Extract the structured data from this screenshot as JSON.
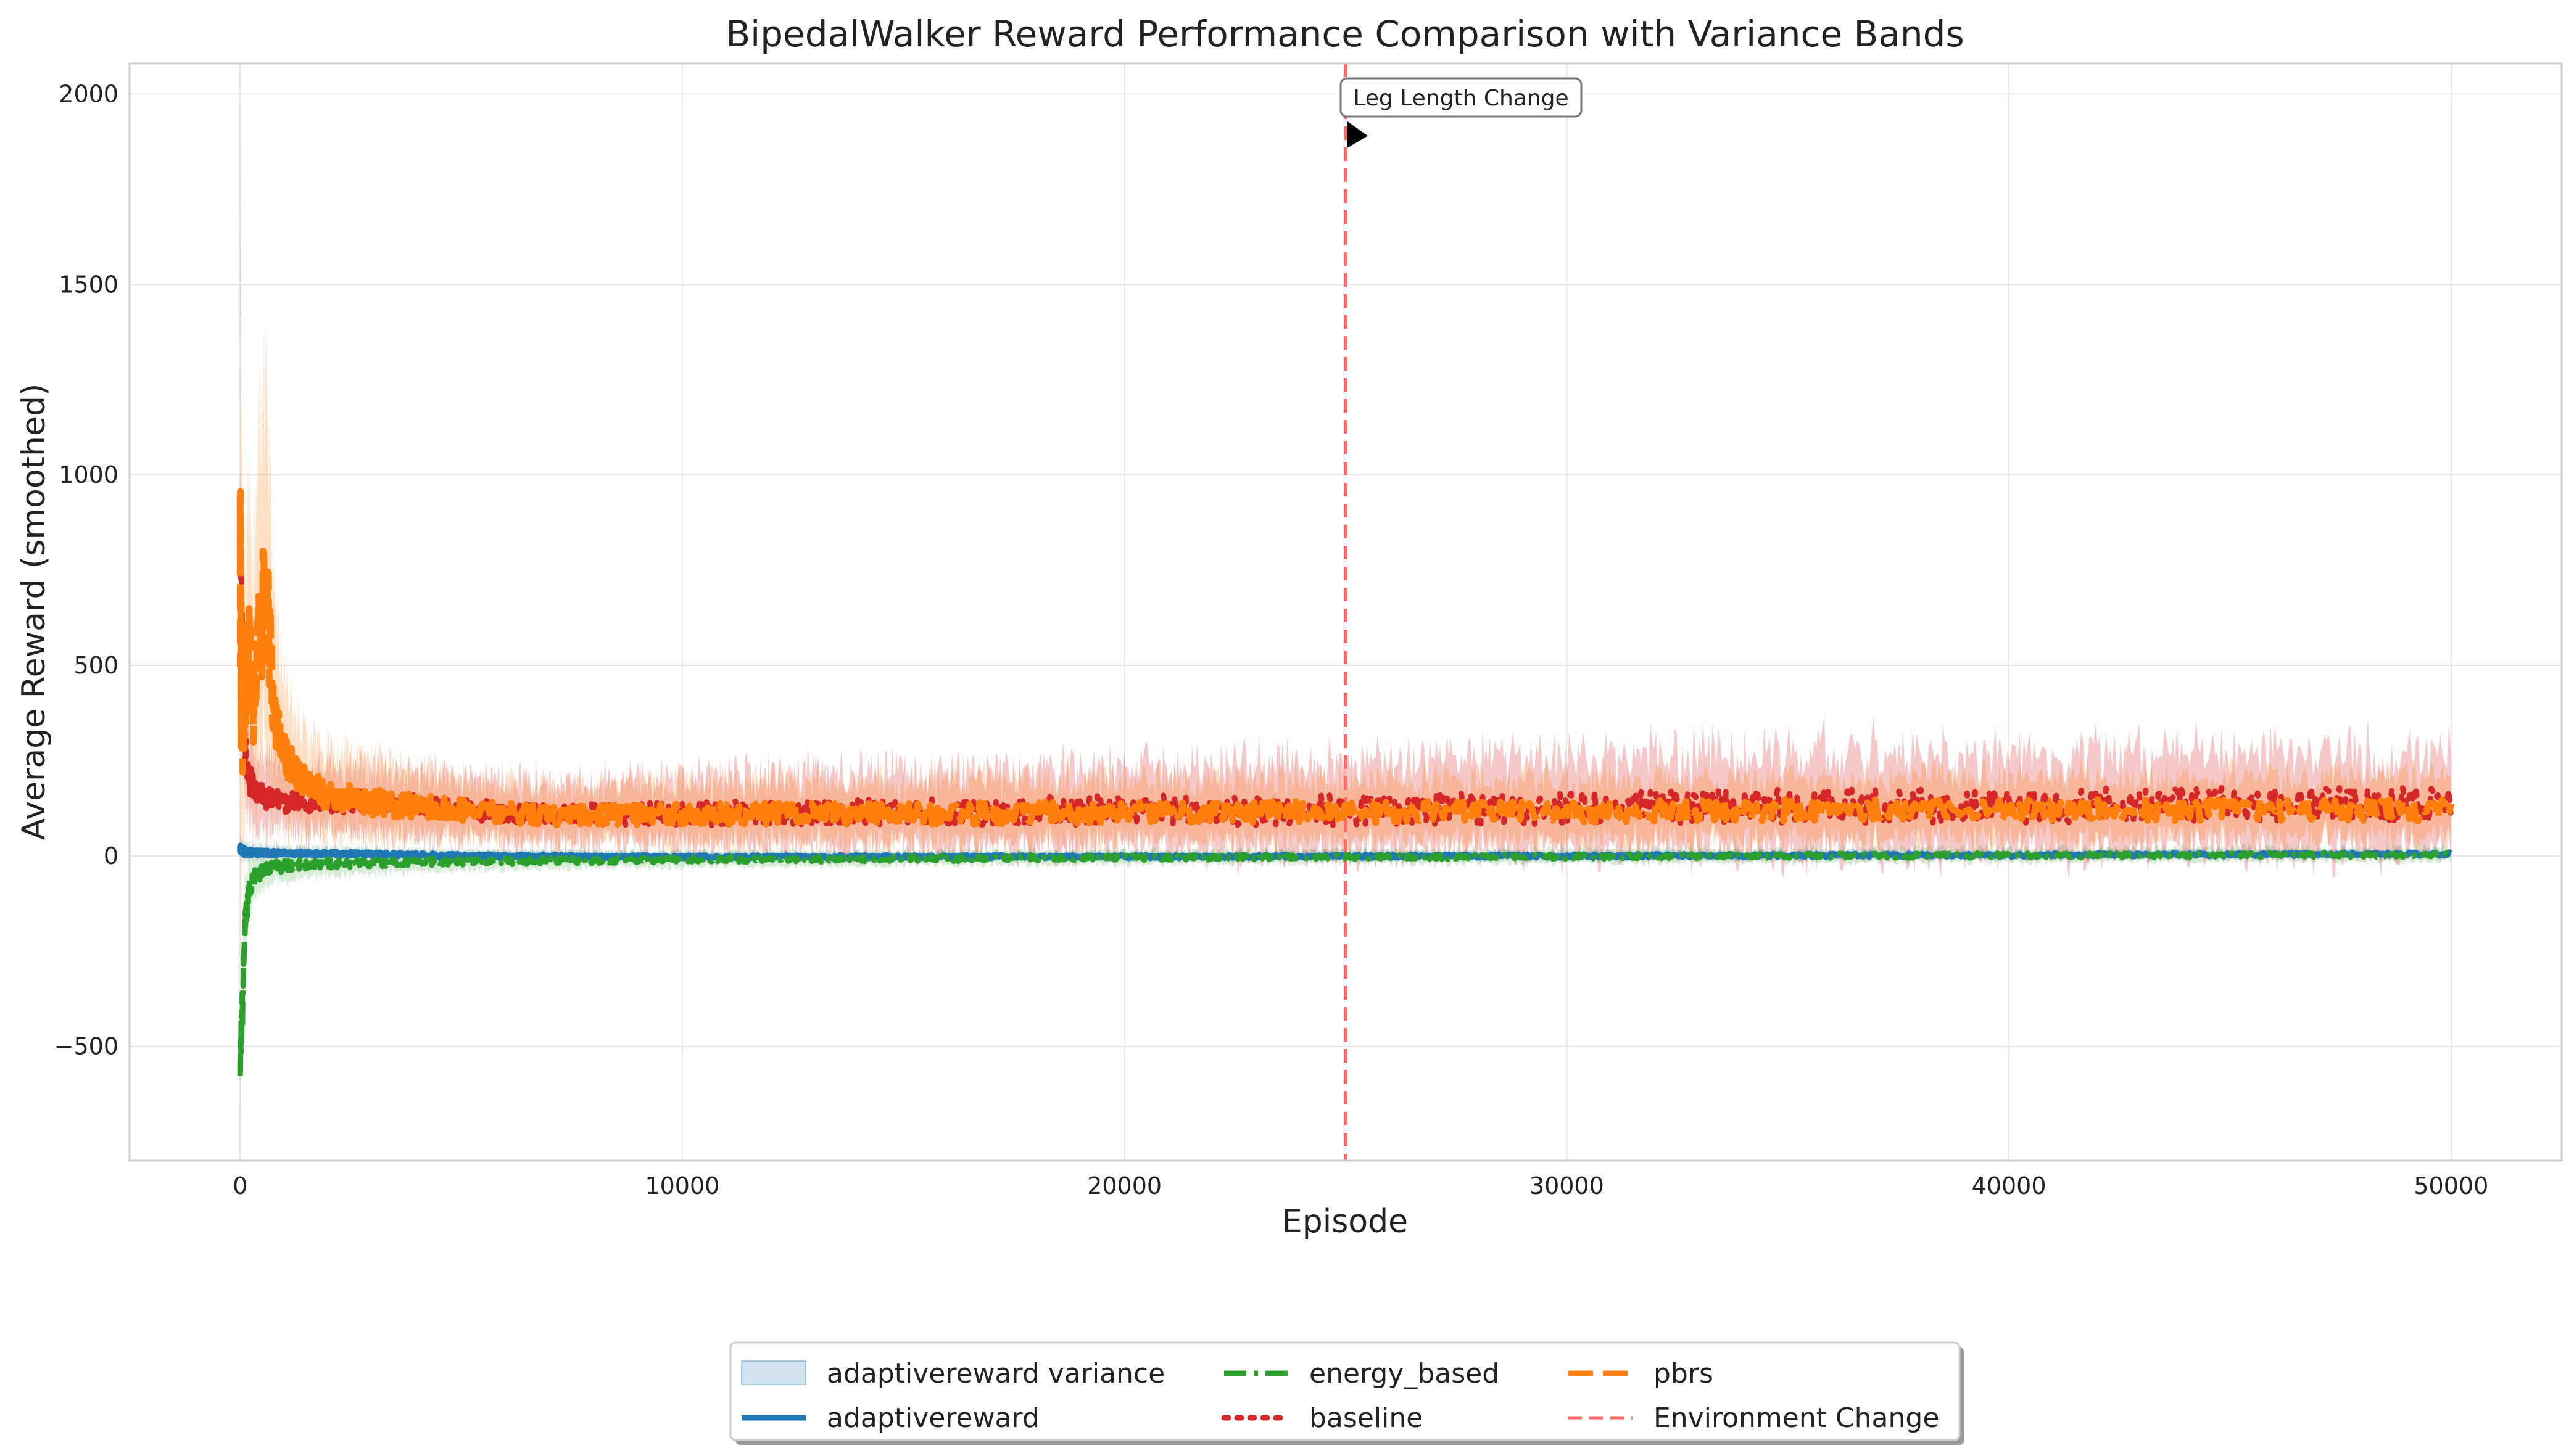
{
  "chart_data": {
    "type": "line",
    "title": "BipedalWalker Reward Performance Comparison with Variance Bands",
    "xlabel": "Episode",
    "ylabel": "Average Reward (smoothed)",
    "xlim": [
      -2500,
      52500
    ],
    "ylim": [
      -800,
      2080
    ],
    "xticks": [
      0,
      10000,
      20000,
      30000,
      40000,
      50000
    ],
    "yticks": [
      -500,
      0,
      500,
      1000,
      1500,
      2000
    ],
    "grid": true,
    "legend_position": "bottom-center",
    "series": [
      {
        "name": "adaptivereward",
        "color": "#1f77b4",
        "dash": "solid",
        "x": [
          0,
          100,
          300,
          600,
          1000,
          2000,
          3000,
          5000,
          10000,
          15000,
          20000,
          25000,
          30000,
          35000,
          40000,
          45000,
          50000
        ],
        "y": [
          20,
          10,
          8,
          8,
          7,
          6,
          4,
          0,
          -3,
          -2,
          -2,
          -1,
          0,
          1,
          2,
          3,
          5
        ],
        "band": [
          30,
          25,
          20,
          18,
          15,
          15,
          15,
          15,
          12,
          12,
          12,
          12,
          12,
          12,
          12,
          12,
          12
        ]
      },
      {
        "name": "energy_based",
        "color": "#2ca02c",
        "dash": "dashdot",
        "x": [
          0,
          50,
          100,
          200,
          300,
          500,
          800,
          1200,
          2000,
          3000,
          5000,
          10000,
          15000,
          20000,
          25000,
          30000,
          35000,
          40000,
          45000,
          50000
        ],
        "y": [
          -540,
          -400,
          -200,
          -90,
          -60,
          -40,
          -30,
          -25,
          -20,
          -18,
          -15,
          -10,
          -8,
          -5,
          -3,
          -2,
          0,
          1,
          2,
          3
        ],
        "band": [
          130,
          150,
          120,
          80,
          60,
          50,
          45,
          40,
          35,
          30,
          25,
          20,
          20,
          18,
          18,
          18,
          18,
          18,
          18,
          18
        ]
      },
      {
        "name": "baseline",
        "color": "#d62728",
        "dash": "dotted",
        "x": [
          0,
          30,
          60,
          100,
          200,
          400,
          700,
          1000,
          2000,
          3000,
          5000,
          7000,
          10000,
          15000,
          20000,
          25000,
          30000,
          35000,
          40000,
          45000,
          50000
        ],
        "y": [
          840,
          700,
          500,
          300,
          200,
          160,
          150,
          140,
          140,
          140,
          120,
          110,
          110,
          115,
          120,
          120,
          125,
          130,
          130,
          135,
          135
        ],
        "band": [
          150,
          200,
          200,
          150,
          120,
          100,
          90,
          80,
          80,
          90,
          80,
          80,
          90,
          100,
          110,
          120,
          120,
          130,
          130,
          130,
          130
        ]
      },
      {
        "name": "pbrs",
        "color": "#ff7f0e",
        "dash": "dashed",
        "x": [
          0,
          30,
          60,
          100,
          200,
          300,
          450,
          600,
          750,
          900,
          1200,
          1600,
          2000,
          3000,
          5000,
          7000,
          10000,
          15000,
          20000,
          25000,
          30000,
          35000,
          40000,
          45000,
          50000
        ],
        "y": [
          700,
          450,
          350,
          400,
          550,
          380,
          600,
          700,
          420,
          280,
          220,
          180,
          160,
          140,
          120,
          105,
          110,
          110,
          115,
          115,
          115,
          120,
          120,
          120,
          120
        ],
        "band": [
          1000,
          600,
          400,
          350,
          350,
          300,
          450,
          500,
          300,
          200,
          150,
          120,
          110,
          100,
          80,
          70,
          80,
          80,
          80,
          80,
          80,
          80,
          80,
          80,
          80
        ]
      }
    ],
    "annotations": [
      {
        "type": "vline",
        "x": 25000,
        "label": "Environment Change",
        "color": "#ff6b6b"
      },
      {
        "type": "text",
        "x": 25000,
        "y": 1900,
        "text": "Leg Length Change"
      }
    ],
    "legend": [
      {
        "label": "adaptivereward variance",
        "kind": "band",
        "color": "#1f77b4"
      },
      {
        "label": "adaptivereward",
        "kind": "line",
        "color": "#1f77b4",
        "dash": "solid"
      },
      {
        "label": "energy_based",
        "kind": "line",
        "color": "#2ca02c",
        "dash": "dashdot"
      },
      {
        "label": "baseline",
        "kind": "line",
        "color": "#d62728",
        "dash": "dotted"
      },
      {
        "label": "pbrs",
        "kind": "line",
        "color": "#ff7f0e",
        "dash": "dashed"
      },
      {
        "label": "Environment Change",
        "kind": "line",
        "color": "#ff6b6b",
        "dash": "dashed"
      }
    ]
  }
}
